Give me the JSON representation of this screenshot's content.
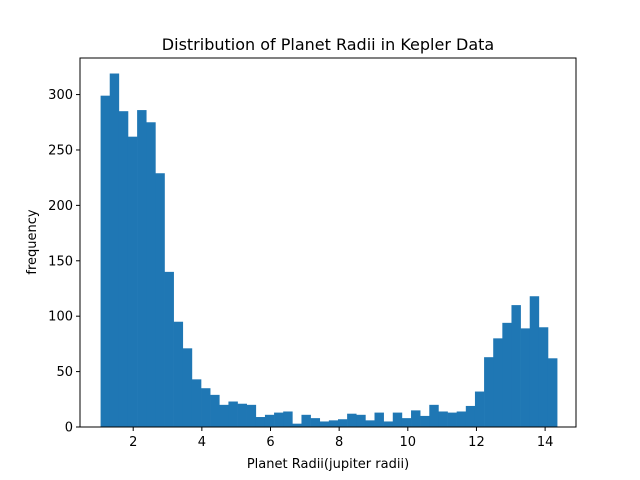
{
  "chart_data": {
    "type": "bar",
    "title": "Distribution of Planet Radii in Kepler Data",
    "xlabel": "Planet Radii(jupiter radii)",
    "ylabel": "frequency",
    "xlim": [
      0.45,
      14.9
    ],
    "ylim": [
      0,
      333
    ],
    "xticks": [
      2,
      4,
      6,
      8,
      10,
      12,
      14
    ],
    "yticks": [
      0,
      50,
      100,
      150,
      200,
      250,
      300
    ],
    "bar_color": "#1f77b4",
    "grid": false,
    "bins": {
      "start": 1.05,
      "width": 0.266,
      "counts": [
        299,
        319,
        285,
        262,
        286,
        275,
        229,
        140,
        95,
        71,
        43,
        35,
        29,
        20,
        23,
        21,
        20,
        9,
        11,
        13,
        14,
        3,
        11,
        8,
        5,
        6,
        7,
        12,
        11,
        6,
        13,
        5,
        13,
        8,
        15,
        10,
        20,
        14,
        13,
        14,
        19,
        32,
        63,
        80,
        94,
        110,
        89,
        118,
        90,
        62
      ]
    }
  }
}
